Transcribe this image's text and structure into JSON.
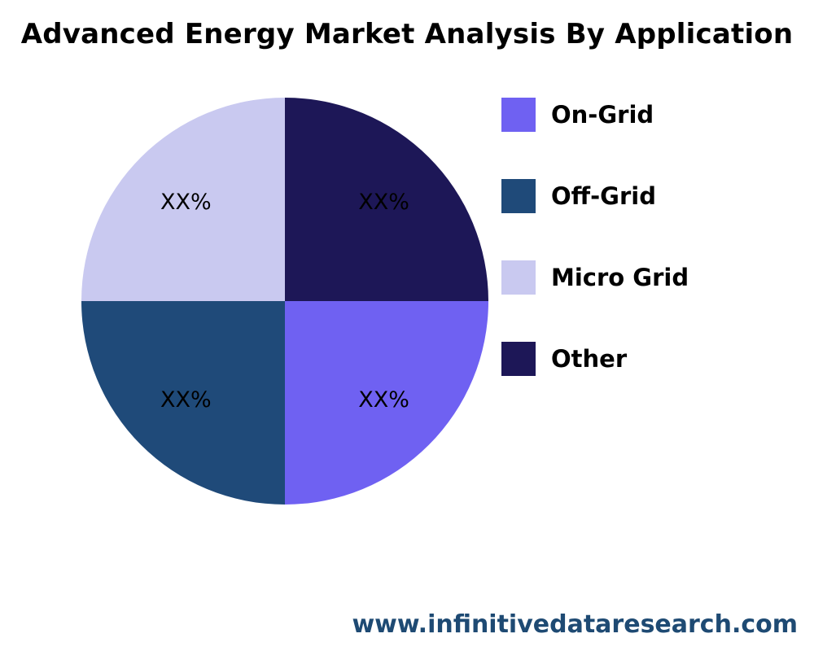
{
  "chart_data": {
    "type": "pie",
    "title": "Advanced Energy Market Analysis By Application",
    "categories": [
      "On-Grid",
      "Off-Grid",
      "Micro Grid",
      "Other"
    ],
    "values": [
      25,
      25,
      25,
      25
    ],
    "slice_labels": [
      "XX%",
      "XX%",
      "XX%",
      "XX%"
    ],
    "colors": [
      "#6f61f2",
      "#1f4a79",
      "#c9c9f0",
      "#1d1757"
    ],
    "legend_position": "right",
    "start_angle_deg": 0,
    "direction": "clockwise",
    "label_text_color": "#000000"
  },
  "legend": {
    "items": [
      {
        "label": "On-Grid",
        "color": "#6f61f2"
      },
      {
        "label": "Off-Grid",
        "color": "#1f4a79"
      },
      {
        "label": "Micro Grid",
        "color": "#c9c9f0"
      },
      {
        "label": "Other",
        "color": "#1d1757"
      }
    ]
  },
  "footer": {
    "website": "www.infinitivedataresearch.com",
    "website_color": "#1e4a73"
  }
}
